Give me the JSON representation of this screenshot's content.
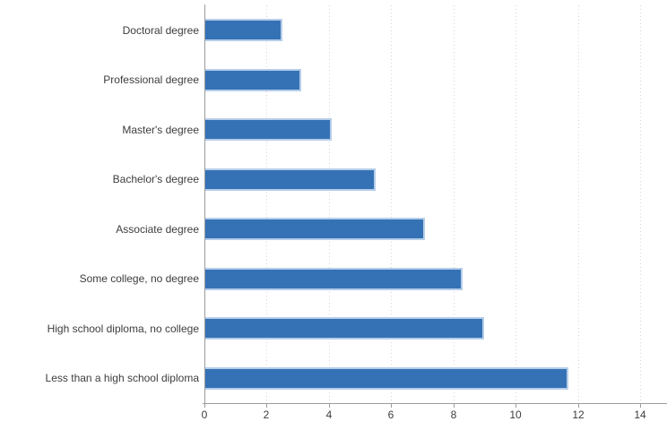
{
  "chart_data": {
    "type": "bar",
    "orientation": "horizontal",
    "title": "",
    "xlabel": "",
    "ylabel": "",
    "categories": [
      "Doctoral degree",
      "Professional degree",
      "Master's degree",
      "Bachelor's degree",
      "Associate degree",
      "Some college, no degree",
      "High school diploma, no college",
      "Less than a high school diploma"
    ],
    "values": [
      2.5,
      3.1,
      4.1,
      5.5,
      7.1,
      8.3,
      9.0,
      11.7
    ],
    "xlim": [
      0,
      14
    ],
    "xticks": [
      0,
      2,
      4,
      6,
      8,
      10,
      12,
      14
    ],
    "grid": "vertical dotted gridlines at each x tick",
    "legend_position": "none",
    "colors": {
      "bar": "#3572B5",
      "bar_border": "#B5CDE9",
      "gridline": "#D6D6D6",
      "axis": "#9C9C9C",
      "text": "#3D3D3D"
    }
  }
}
